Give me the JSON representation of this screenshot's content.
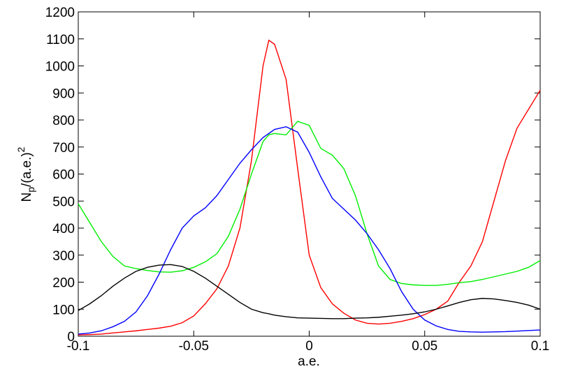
{
  "chart_data": {
    "type": "line",
    "xlabel": "a.e.",
    "ylabel": [
      "N",
      "p",
      "/(a.e.)",
      "2"
    ],
    "x": [
      -0.1,
      -0.095,
      -0.09,
      -0.085,
      -0.08,
      -0.075,
      -0.07,
      -0.065,
      -0.06,
      -0.055,
      -0.05,
      -0.045,
      -0.04,
      -0.035,
      -0.03,
      -0.025,
      -0.02,
      -0.0175,
      -0.015,
      -0.01,
      -0.005,
      0,
      0.005,
      0.01,
      0.015,
      0.02,
      0.025,
      0.03,
      0.035,
      0.04,
      0.045,
      0.05,
      0.055,
      0.06,
      0.065,
      0.07,
      0.075,
      0.08,
      0.085,
      0.09,
      0.095,
      0.1
    ],
    "series": [
      {
        "color": "#ff0000",
        "values": [
          5,
          6,
          8,
          12,
          16,
          20,
          25,
          30,
          37,
          50,
          75,
          120,
          175,
          260,
          400,
          650,
          1000,
          1095,
          1080,
          950,
          620,
          300,
          180,
          120,
          85,
          60,
          48,
          45,
          48,
          55,
          65,
          80,
          100,
          130,
          200,
          260,
          350,
          500,
          650,
          770,
          840,
          910
        ]
      },
      {
        "color": "#00ee00",
        "values": [
          490,
          420,
          350,
          295,
          260,
          250,
          243,
          238,
          237,
          242,
          255,
          275,
          305,
          370,
          470,
          600,
          720,
          745,
          750,
          745,
          795,
          780,
          695,
          670,
          620,
          520,
          380,
          260,
          210,
          195,
          190,
          188,
          188,
          192,
          198,
          202,
          210,
          220,
          230,
          240,
          255,
          280
        ]
      },
      {
        "color": "#0000ff",
        "values": [
          8,
          12,
          20,
          35,
          55,
          90,
          150,
          230,
          320,
          400,
          445,
          475,
          520,
          580,
          640,
          690,
          735,
          750,
          765,
          775,
          755,
          680,
          590,
          510,
          470,
          430,
          380,
          320,
          250,
          165,
          100,
          60,
          38,
          25,
          18,
          16,
          15,
          16,
          17,
          19,
          21,
          23
        ]
      },
      {
        "color": "#000000",
        "values": [
          95,
          120,
          150,
          185,
          215,
          240,
          255,
          263,
          265,
          258,
          240,
          215,
          185,
          155,
          125,
          100,
          87,
          83,
          78,
          72,
          68,
          67,
          66,
          65,
          65,
          67,
          68,
          70,
          74,
          78,
          83,
          90,
          100,
          112,
          125,
          135,
          140,
          138,
          132,
          125,
          115,
          100
        ]
      }
    ],
    "xlim": [
      -0.1,
      0.1
    ],
    "xticks": [
      -0.1,
      -0.05,
      0,
      0.05,
      0.1
    ],
    "ylim": [
      0,
      1200
    ],
    "yticks": [
      0,
      100,
      200,
      300,
      400,
      500,
      600,
      700,
      800,
      900,
      1000,
      1100,
      1200
    ]
  }
}
